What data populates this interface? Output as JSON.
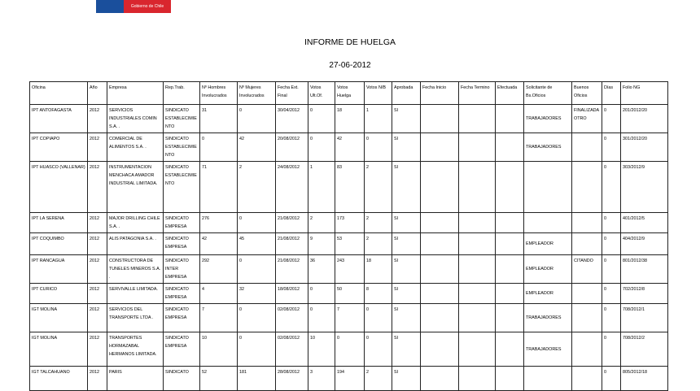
{
  "logo": {
    "text": "Gobierno de Chile",
    "colors": [
      "#1a4f9c",
      "#d9262e"
    ]
  },
  "title": "INFORME DE HUELGA",
  "date": "27-06-2012",
  "headers": [
    "Oficina",
    "Año",
    "Empresa",
    "Rep.Trab.",
    "Nº Hombres Involucrados",
    "Nº Mujeres Involucrados",
    "Fecha Ext. Final",
    "Votos Ult.Of.",
    "Votos Huelga",
    "Votos N/B",
    "Aprobada",
    "Fecha Inicio",
    "Fecha Termino",
    "Efectuada",
    "Solicitante de Bs.Oficios",
    "Buenos Oficios",
    "Días",
    "Folio NG"
  ],
  "rows": [
    [
      "IPT ANTOFAGASTA",
      "2012",
      "SERVICIOS INDUSTRIALES COMIN S.A. .",
      "SINDICATO ESTABLECIMIENTO",
      "31",
      "0",
      "30/04/2012",
      "0",
      "18",
      "1",
      "SI",
      "",
      "",
      "",
      "TRABAJADORES",
      "FINALIZADA OTRO",
      "0",
      "201/2012/20"
    ],
    [
      "IPT COPIAPO",
      "2012",
      "COMERCIAL DE ALIMENTOS S.A. .",
      "SINDICATO ESTABLECIMIENTO",
      "0",
      "42",
      "20/08/2012",
      "0",
      "42",
      "0",
      "SI",
      "",
      "",
      "",
      "TRABAJADORES",
      "",
      "0",
      "301/2012/20"
    ],
    [
      "IPT HUASCO (VALLENAR)",
      "2012",
      "INSTRUMENTACION MENCHACA AMADOR INDUSTRIAL LIMITADA.",
      "SINDICATO ESTABLECIMIENTO",
      "71",
      "2",
      "24/08/2012",
      "1",
      "83",
      "2",
      "SI",
      "",
      "",
      "",
      "",
      "",
      "0",
      "303/2012/9"
    ],
    [
      "IPT LA SERENA",
      "2012",
      "MAJOR DRILLING CHILE S.A. .",
      "SINDICATO EMPRESA",
      "276",
      "0",
      "21/08/2012",
      "2",
      "173",
      "2",
      "SI",
      "",
      "",
      "",
      "",
      "",
      "0",
      "401/2012/5"
    ],
    [
      "IPT COQUIMBO",
      "2012",
      "ALIS PATAGONIA S.A. .",
      "SINDICATO EMPRESA",
      "42",
      "45",
      "21/08/2012",
      "9",
      "53",
      "2",
      "SI",
      "",
      "",
      "",
      "EMPLEADOR",
      "",
      "0",
      "404/2012/9"
    ],
    [
      "IPT RANCAGUA",
      "2012",
      "CONSTRUCTORA DE TUNELES MINEROS S.A. .",
      "SINDICATO INTER EMPRESA",
      "292",
      "0",
      "21/08/2012",
      "36",
      "243",
      "18",
      "SI",
      "",
      "",
      "",
      "EMPLEADOR",
      "CITANDO",
      "0",
      "801/2012/38"
    ],
    [
      "IPT CURICO",
      "2012",
      "SERVIVALLE LIMITADA.",
      "SINDICATO EMPRESA",
      "4",
      "32",
      "18/08/2012",
      "0",
      "50",
      "8",
      "SI",
      "",
      "",
      "",
      "EMPLEADOR",
      "",
      "0",
      "702/2012/8"
    ],
    [
      "IGT MOLINA",
      "2012",
      "SERVICIOS DEL TRANSPORTE LTDA .",
      "SINDICATO EMPRESA",
      "7",
      "0",
      "02/08/2012",
      "0",
      "7",
      "0",
      "SI",
      "",
      "",
      "",
      "TRABAJADORES",
      "",
      "0",
      "708/2012/1"
    ],
    [
      "IGT MOLINA",
      "2012",
      "TRANSPORTES HORMAZABAL HERMANOS LIMITADA.",
      "SINDICATO EMPRESA",
      "10",
      "0",
      "02/08/2012",
      "10",
      "0",
      "0",
      "SI",
      "",
      "",
      "",
      "TRABAJADORES",
      "",
      "0",
      "708/2012/2"
    ],
    [
      "IGT TALCAHUANO",
      "2012",
      "PARIS",
      "SINDICATO",
      "52",
      "181",
      "28/08/2012",
      "3",
      "194",
      "2",
      "SI",
      "",
      "",
      "",
      "",
      "",
      "0",
      "805/2012/18"
    ]
  ]
}
